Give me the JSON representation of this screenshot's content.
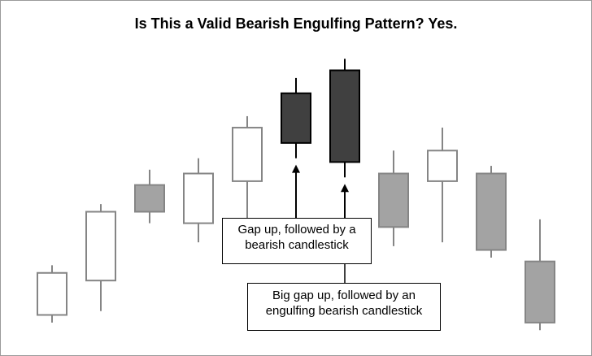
{
  "title": "Is This a Valid Bearish Engulfing Pattern? Yes.",
  "colors": {
    "bullish_fill": "#ffffff",
    "bearish_gray_fill": "#a3a3a3",
    "bearish_dark_fill": "#404040",
    "faded_stroke": "#858585",
    "highlight_stroke": "#000000"
  },
  "chart_data": {
    "type": "candlestick",
    "title": "Is This a Valid Bearish Engulfing Pattern? Yes.",
    "candles": [
      {
        "open": 14,
        "high": 16,
        "low": 1,
        "close": 3,
        "style": "bullish",
        "highlight": false
      },
      {
        "open": 12,
        "high": 32,
        "low": 4,
        "close": 30,
        "style": "bullish",
        "highlight": false
      },
      {
        "open": 30,
        "high": 41,
        "low": 27,
        "close": 37,
        "style": "bearish-gray",
        "highlight": false
      },
      {
        "open": 27,
        "high": 44,
        "low": 22,
        "close": 40,
        "style": "bullish",
        "highlight": false
      },
      {
        "open": 38,
        "high": 55,
        "low": 28,
        "close": 52,
        "style": "bullish",
        "highlight": false
      },
      {
        "open": 61,
        "high": 65,
        "low": 44,
        "close": 48,
        "style": "bearish-dark",
        "highlight": true
      },
      {
        "open": 67,
        "high": 70,
        "low": 39,
        "close": 43,
        "style": "bearish-dark",
        "highlight": true
      },
      {
        "open": 40,
        "high": 46,
        "low": 21,
        "close": 26,
        "style": "bearish-gray",
        "highlight": false
      },
      {
        "open": 46,
        "high": 52,
        "low": 22,
        "close": 38,
        "style": "bullish",
        "highlight": false
      },
      {
        "open": 40,
        "high": 42,
        "low": 18,
        "close": 20,
        "style": "bearish-gray",
        "highlight": false
      },
      {
        "open": 17,
        "high": 28,
        "low": -1,
        "close": 1,
        "style": "bearish-gray",
        "highlight": false
      }
    ],
    "ylim": [
      -2,
      72
    ]
  },
  "callouts": [
    {
      "line1": "Gap up, followed by a",
      "line2": "bearish candlestick",
      "target_candle": 5
    },
    {
      "line1": "Big gap up, followed by an",
      "line2": "engulfing bearish candlestick",
      "target_candle": 6
    }
  ]
}
